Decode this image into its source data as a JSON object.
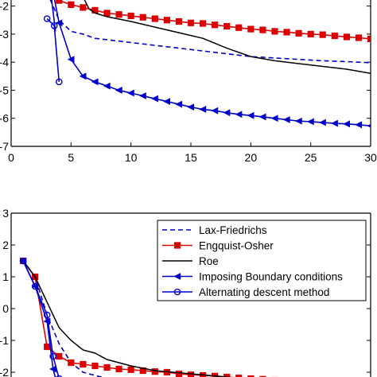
{
  "chart_data": [
    {
      "type": "line",
      "title": "",
      "xlabel": "",
      "ylabel": "",
      "xlim": [
        0,
        30
      ],
      "ylim": [
        -7,
        -1.5
      ],
      "xticks": [
        "0",
        "5",
        "10",
        "15",
        "20",
        "25",
        "30"
      ],
      "yticks": [
        "-2",
        "-3",
        "-4",
        "-5",
        "-6",
        "-7"
      ],
      "series": [
        {
          "key": "lf",
          "color": "#0000cc",
          "dash": "6,4",
          "marker": "none",
          "points": [
            [
              3,
              -1.5
            ],
            [
              4,
              -2.5
            ],
            [
              5,
              -2.9
            ],
            [
              6,
              -3.0
            ],
            [
              7,
              -3.15
            ],
            [
              8,
              -3.2
            ],
            [
              9,
              -3.25
            ],
            [
              10,
              -3.3
            ],
            [
              12,
              -3.4
            ],
            [
              14,
              -3.5
            ],
            [
              16,
              -3.6
            ],
            [
              18,
              -3.7
            ],
            [
              20,
              -3.8
            ],
            [
              22,
              -3.85
            ],
            [
              24,
              -3.9
            ],
            [
              26,
              -3.95
            ],
            [
              28,
              -3.98
            ],
            [
              30,
              -4.02
            ]
          ]
        },
        {
          "key": "eo",
          "color": "#dd0000",
          "dash": "",
          "marker": "square",
          "points": [
            [
              3,
              -1.5
            ],
            [
              4,
              -1.8
            ],
            [
              5,
              -1.95
            ],
            [
              6,
              -2.05
            ],
            [
              7,
              -2.15
            ],
            [
              8,
              -2.25
            ],
            [
              9,
              -2.3
            ],
            [
              10,
              -2.35
            ],
            [
              11,
              -2.4
            ],
            [
              12,
              -2.45
            ],
            [
              13,
              -2.5
            ],
            [
              14,
              -2.55
            ],
            [
              15,
              -2.6
            ],
            [
              16,
              -2.62
            ],
            [
              17,
              -2.67
            ],
            [
              18,
              -2.72
            ],
            [
              19,
              -2.77
            ],
            [
              20,
              -2.82
            ],
            [
              21,
              -2.85
            ],
            [
              22,
              -2.9
            ],
            [
              23,
              -2.93
            ],
            [
              24,
              -2.97
            ],
            [
              25,
              -3.0
            ],
            [
              26,
              -3.02
            ],
            [
              27,
              -3.06
            ],
            [
              28,
              -3.1
            ],
            [
              29,
              -3.13
            ],
            [
              30,
              -3.17
            ]
          ]
        },
        {
          "key": "roe",
          "color": "#000000",
          "dash": "",
          "marker": "none",
          "points": [
            [
              5.8,
              -1.5
            ],
            [
              6.5,
              -2.1
            ],
            [
              7,
              -2.25
            ],
            [
              8,
              -2.38
            ],
            [
              10,
              -2.55
            ],
            [
              12,
              -2.75
            ],
            [
              14,
              -2.95
            ],
            [
              16,
              -3.15
            ],
            [
              18,
              -3.5
            ],
            [
              20,
              -3.8
            ],
            [
              22,
              -3.95
            ],
            [
              24,
              -4.05
            ],
            [
              26,
              -4.15
            ],
            [
              28,
              -4.25
            ],
            [
              30,
              -4.4
            ]
          ]
        },
        {
          "key": "ibc",
          "color": "#0000cc",
          "dash": "",
          "marker": "triangle",
          "points": [
            [
              3.5,
              -1.5
            ],
            [
              4,
              -2.6
            ],
            [
              5,
              -3.9
            ],
            [
              6,
              -4.5
            ],
            [
              7,
              -4.7
            ],
            [
              8,
              -4.85
            ],
            [
              9,
              -5.0
            ],
            [
              10,
              -5.1
            ],
            [
              11,
              -5.2
            ],
            [
              12,
              -5.3
            ],
            [
              13,
              -5.4
            ],
            [
              14,
              -5.5
            ],
            [
              15,
              -5.6
            ],
            [
              16,
              -5.68
            ],
            [
              17,
              -5.73
            ],
            [
              18,
              -5.8
            ],
            [
              19,
              -5.86
            ],
            [
              20,
              -5.9
            ],
            [
              21,
              -5.95
            ],
            [
              22,
              -6.0
            ],
            [
              23,
              -6.05
            ],
            [
              24,
              -6.1
            ],
            [
              25,
              -6.12
            ],
            [
              26,
              -6.15
            ],
            [
              27,
              -6.18
            ],
            [
              28,
              -6.2
            ],
            [
              29,
              -6.23
            ],
            [
              30,
              -6.27
            ]
          ]
        },
        {
          "key": "adm",
          "color": "#0000cc",
          "dash": "",
          "marker": "circle",
          "points": [
            [
              3,
              -2.45
            ],
            [
              3.6,
              -2.7
            ],
            [
              4,
              -4.7
            ]
          ]
        },
        {
          "key": "adm_stray",
          "color": "#0000cc",
          "dash": "",
          "marker": "none",
          "points": [
            [
              3.3,
              -1.5
            ],
            [
              3.7,
              -2.9
            ]
          ]
        }
      ]
    },
    {
      "type": "line",
      "title": "",
      "xlabel": "",
      "ylabel": "",
      "xlim": [
        0,
        30
      ],
      "ylim": [
        -2.6,
        3
      ],
      "yticks": [
        "3",
        "2",
        "1",
        "0",
        "-1",
        "-2"
      ],
      "legend": {
        "position": "top-right",
        "entries": [
          {
            "label": "Lax-Friedrichs",
            "key": "lf"
          },
          {
            "label": "Engquist-Osher",
            "key": "eo"
          },
          {
            "label": "Roe",
            "key": "roe"
          },
          {
            "label": "Imposing Boundary conditions",
            "key": "ibc"
          },
          {
            "label": "Alternating descent method",
            "key": "adm"
          }
        ]
      },
      "series": [
        {
          "key": "lf",
          "color": "#0000cc",
          "dash": "6,4",
          "marker": "none",
          "points": [
            [
              1,
              1.5
            ],
            [
              2,
              1.0
            ],
            [
              3,
              -0.2
            ],
            [
              4,
              -1.1
            ],
            [
              5,
              -1.7
            ],
            [
              6,
              -2.0
            ],
            [
              7,
              -2.1
            ],
            [
              8,
              -2.2
            ],
            [
              10,
              -2.3
            ],
            [
              12,
              -2.4
            ],
            [
              15,
              -2.5
            ],
            [
              18,
              -2.6
            ]
          ]
        },
        {
          "key": "eo",
          "color": "#dd0000",
          "dash": "",
          "marker": "square",
          "points": [
            [
              1,
              1.5
            ],
            [
              2,
              1.0
            ],
            [
              3,
              -1.2
            ],
            [
              4,
              -1.5
            ],
            [
              5,
              -1.7
            ],
            [
              6,
              -1.75
            ],
            [
              7,
              -1.8
            ],
            [
              8,
              -1.85
            ],
            [
              9,
              -1.9
            ],
            [
              10,
              -1.92
            ],
            [
              11,
              -1.95
            ],
            [
              12,
              -1.98
            ],
            [
              13,
              -2.0
            ],
            [
              14,
              -2.05
            ],
            [
              15,
              -2.08
            ],
            [
              16,
              -2.1
            ],
            [
              17,
              -2.12
            ],
            [
              18,
              -2.15
            ],
            [
              19,
              -2.18
            ],
            [
              20,
              -2.2
            ],
            [
              21,
              -2.22
            ],
            [
              22,
              -2.25
            ],
            [
              23,
              -2.27
            ],
            [
              24,
              -2.3
            ],
            [
              25,
              -2.32
            ],
            [
              26,
              -2.35
            ],
            [
              27,
              -2.38
            ],
            [
              28,
              -2.4
            ],
            [
              29,
              -2.42
            ],
            [
              30,
              -2.45
            ]
          ]
        },
        {
          "key": "roe",
          "color": "#000000",
          "dash": "",
          "marker": "none",
          "points": [
            [
              1,
              1.5
            ],
            [
              2,
              1.0
            ],
            [
              3,
              0.2
            ],
            [
              4,
              -0.6
            ],
            [
              5,
              -1.0
            ],
            [
              6,
              -1.3
            ],
            [
              7,
              -1.4
            ],
            [
              8,
              -1.6
            ],
            [
              10,
              -1.8
            ],
            [
              12,
              -1.95
            ],
            [
              15,
              -2.05
            ],
            [
              18,
              -2.15
            ],
            [
              21,
              -2.25
            ],
            [
              24,
              -2.3
            ],
            [
              27,
              -2.35
            ],
            [
              30,
              -2.45
            ]
          ]
        },
        {
          "key": "ibc",
          "color": "#0000cc",
          "dash": "",
          "marker": "triangle",
          "points": [
            [
              1,
              1.5
            ],
            [
              2,
              0.7
            ],
            [
              3,
              -0.4
            ],
            [
              3.5,
              -1.9
            ],
            [
              4,
              -2.6
            ]
          ]
        },
        {
          "key": "adm",
          "color": "#0000cc",
          "dash": "",
          "marker": "circle",
          "points": [
            [
              1,
              1.5
            ],
            [
              2,
              0.7
            ],
            [
              3,
              -0.2
            ],
            [
              3.5,
              -1.5
            ],
            [
              4,
              -2.2
            ]
          ]
        }
      ]
    }
  ]
}
